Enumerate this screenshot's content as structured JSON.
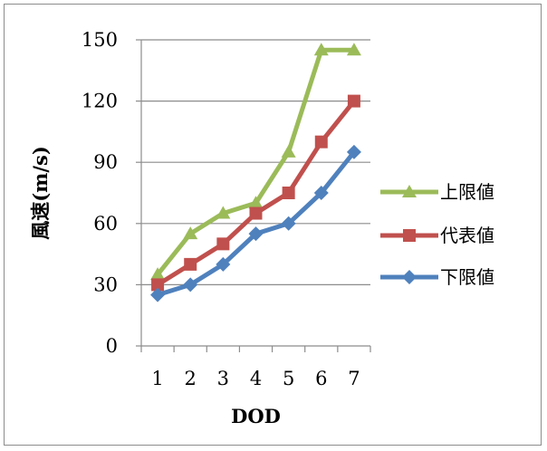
{
  "chart_data": {
    "type": "line",
    "xlabel": "DOD",
    "ylabel": "風速(m/s)",
    "x": [
      1,
      2,
      3,
      4,
      5,
      6,
      7
    ],
    "ylim": [
      0,
      150
    ],
    "yticks": [
      0,
      30,
      60,
      90,
      120,
      150
    ],
    "grid": true,
    "legend": "right",
    "series": [
      {
        "name": "上限値",
        "marker": "triangle",
        "color": "#9BBB59",
        "values": [
          35,
          55,
          65,
          70,
          95,
          145,
          145
        ]
      },
      {
        "name": "代表値",
        "marker": "square",
        "color": "#C0504D",
        "values": [
          30,
          40,
          50,
          65,
          75,
          100,
          120
        ]
      },
      {
        "name": "下限値",
        "marker": "diamond",
        "color": "#4F81BD",
        "values": [
          25,
          30,
          40,
          55,
          60,
          75,
          95
        ]
      }
    ]
  }
}
